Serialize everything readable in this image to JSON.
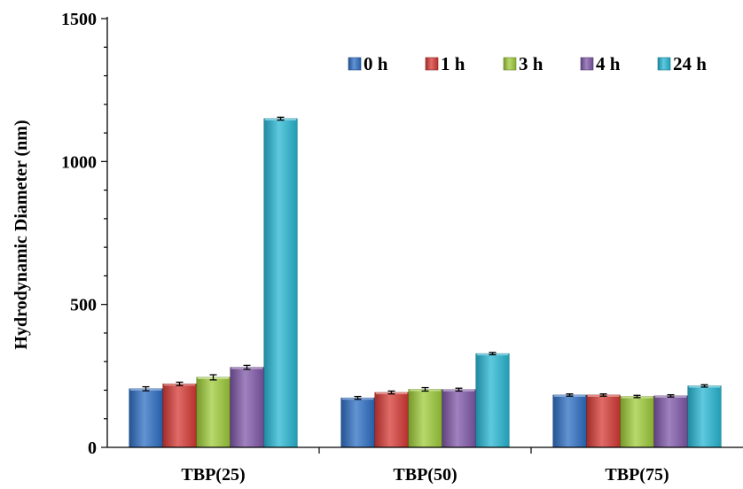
{
  "chart_data": {
    "type": "bar",
    "title": "",
    "xlabel": "",
    "ylabel": "Hydrodynamic Diameter (nm)",
    "ylim": [
      0,
      1500
    ],
    "yticks": [
      0,
      500,
      1000,
      1500
    ],
    "grid": false,
    "legend_position": "top-right",
    "categories": [
      "TBP(25)",
      "TBP(50)",
      "TBP(75)"
    ],
    "series": [
      {
        "name": "0 h",
        "color": "#2e6fc4",
        "values": [
          205,
          173,
          183
        ],
        "errors": [
          7,
          5,
          4
        ]
      },
      {
        "name": "1 h",
        "color": "#d63a35",
        "values": [
          222,
          192,
          183
        ],
        "errors": [
          6,
          5,
          4
        ]
      },
      {
        "name": "3 h",
        "color": "#9fcc3b",
        "values": [
          245,
          203,
          178
        ],
        "errors": [
          9,
          6,
          4
        ]
      },
      {
        "name": "4 h",
        "color": "#8058a9",
        "values": [
          280,
          202,
          180
        ],
        "errors": [
          7,
          5,
          4
        ]
      },
      {
        "name": "24 h",
        "color": "#28b7d4",
        "values": [
          1150,
          328,
          215
        ],
        "errors": [
          5,
          4,
          4
        ]
      }
    ]
  }
}
